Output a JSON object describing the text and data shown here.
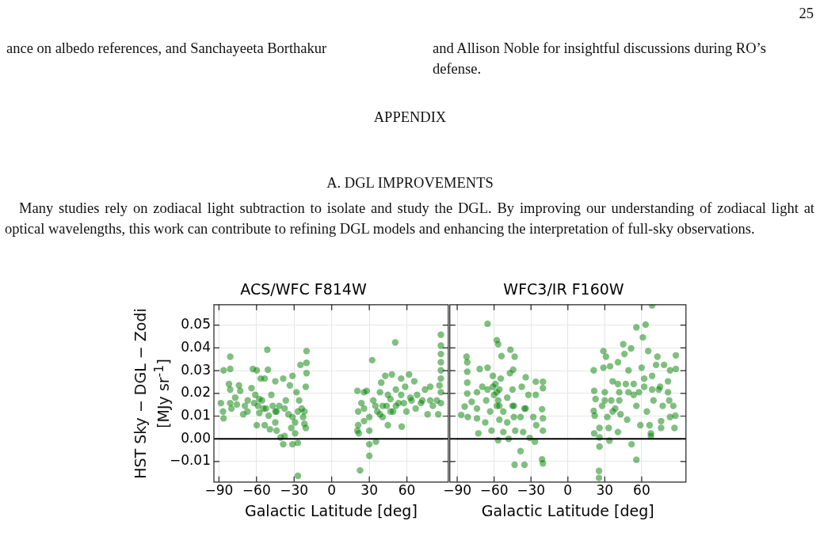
{
  "chart_data": [
    {
      "type": "scatter",
      "title": "ACS/WFC F814W",
      "xlabel": "Galactic Latitude [deg]",
      "ylabel": "HST Sky − DGL − Zodi [MJy sr$^{-1}$]",
      "annotations": [
        "25",
        "ance on albedo references, and Sanchayeeta Borthakur",
        "and Allison Noble for insightful discussions during RO’s defense.",
        "APPENDIX",
        "A. DGL IMPROVEMENTS",
        "Many studies rely on zodiacal light subtraction to isolate and study the DGL. By improving our understanding of zodiacal light at optical wavelengths, this work can contribute to refining DGL models and enhancing the interpretation of full-sky observations."
      ],
      "xlim": [
        -94,
        93
      ],
      "ylim": [
        -0.019,
        0.059
      ],
      "xticks": [
        {
          "value": -90,
          "label": "−90"
        },
        {
          "value": -60,
          "label": "−60"
        },
        {
          "value": -30,
          "label": "−30"
        },
        0,
        30,
        60
      ],
      "yticks": [
        {
          "value": -0.01,
          "label": "−0.01"
        },
        {
          "value": 0,
          "label": "0.00"
        },
        {
          "value": 0.01,
          "label": "0.01"
        },
        {
          "value": 0.02,
          "label": "0.02"
        },
        {
          "value": 0.03,
          "label": "0.03"
        },
        {
          "value": 0.04,
          "label": "0.04"
        },
        {
          "value": 0.05,
          "label": "0.05"
        }
      ],
      "grid": true,
      "marker": "circle",
      "ref_lines": [
        {
          "axis": "y",
          "value": 0,
          "color": "#000000"
        }
      ],
      "series": [
        {
          "color": "#008000",
          "x": [
            -88.4,
            -86.3,
            -86.7,
            -86.3,
            -81,
            -81,
            -82,
            -81,
            -81,
            -80,
            -77,
            -74,
            -73,
            -70.6,
            -69.3,
            -67,
            -64,
            -62.9,
            -59.8,
            -61,
            -59.8,
            -58.8,
            -57.7,
            -56.7,
            -55.6,
            -53.5,
            -51.4,
            -50.9,
            -52.4,
            -53.5,
            -49.3,
            -48.2,
            -45,
            -45,
            -45,
            -44,
            -41.9,
            -40.8,
            -38.7,
            -37.6,
            -38.7,
            -36.6,
            -34.5,
            -33.4,
            -32.3,
            -31.3,
            -31.3,
            -29.2,
            -28.1,
            -27,
            -26,
            -27,
            -24.9,
            -23.9,
            -22.8,
            -21.8,
            -20.7,
            -20.1,
            -20.1,
            -20.1,
            -20.7,
            -21.8,
            -67.2,
            -57.7,
            -54.5,
            -47.1,
            -44,
            -37.6,
            -31.3,
            -27,
            -50.3,
            -61.9,
            -75.7,
            -29.2,
            21.1,
            20.5,
            21.6,
            21.1,
            20.5,
            23.7,
            22.6,
            25.8,
            25.8,
            27.9,
            30,
            30,
            30,
            30,
            32.3,
            33.2,
            35.3,
            36.4,
            38.5,
            39.5,
            40.6,
            42.7,
            43.8,
            44.8,
            46.9,
            48,
            49,
            50.7,
            51.2,
            53.3,
            55.4,
            55.8,
            58.6,
            59.6,
            61.7,
            62.8,
            65.9,
            67,
            68.1,
            71.2,
            74.4,
            76.5,
            78.6,
            80.7,
            83.9,
            85,
            86,
            87.1,
            87.1,
            87.1,
            87.1,
            87.1,
            87.1,
            87.1,
            87.1,
            25.8,
            34.9,
            40.6,
            46.9,
            51.2,
            57.5,
            63.7,
            72.3,
            78.6,
            38.5,
            44.8,
            55.4
          ],
          "values": [
            0.0157,
            0.0301,
            0.012,
            0.009,
            0.0361,
            0.0307,
            0.0241,
            0.0217,
            0.0157,
            0.0133,
            0.0181,
            0.0235,
            0.0211,
            0.0108,
            0.0145,
            0.0169,
            0.0223,
            0.0307,
            0.0301,
            0.0193,
            0.006,
            0.0145,
            0.0114,
            0.0265,
            0.0169,
            0.0265,
            0.0392,
            0.0304,
            0.0133,
            0.006,
            0.0042,
            0.0193,
            0.0253,
            0.012,
            0.0072,
            0.0036,
            0.0145,
            0.0006,
            -0.0024,
            0.0012,
            0.0265,
            0.0169,
            0.0108,
            0.0235,
            0.0048,
            0.0277,
            -0.0024,
            0.0024,
            0.0205,
            -0.0163,
            0.0169,
            -0.0018,
            0.0325,
            0.0133,
            0.0096,
            0.0066,
            0.0048,
            0.0386,
            0.0334,
            0.0289,
            0.0229,
            0.012,
            0.012,
            0.0175,
            0.0133,
            0.0145,
            0.012,
            0.0133,
            0.0096,
            0.012,
            0.0102,
            0.0157,
            0.0151,
            0.0072,
            0.006,
            0.0036,
            0.0024,
            0.012,
            0.0211,
            0.0157,
            -0.0139,
            0.0205,
            0.0078,
            0.0211,
            0.0096,
            0.0036,
            -0.0024,
            -0.0075,
            0.0346,
            0.0169,
            -0.0012,
            0.012,
            0.0205,
            0.0247,
            0.0096,
            0.0277,
            0.0145,
            0.006,
            0.0175,
            0.0283,
            0.012,
            0.0424,
            0.0217,
            0.0157,
            0.0265,
            0.0054,
            0.0229,
            0.012,
            0.0283,
            0.0181,
            0.0253,
            0.0133,
            0.0193,
            0.0157,
            0.0217,
            0.0108,
            0.0229,
            0.0145,
            0.0169,
            0.0108,
            0.0235,
            0.0458,
            0.041,
            0.0373,
            0.0337,
            0.0301,
            0.0265,
            0.0205,
            0.0157,
            0.0133,
            0.0145,
            0.0145,
            0.012,
            0.0145,
            0.0157,
            0.0169,
            0.0169,
            0.0169,
            0.0108,
            0.0193,
            0.0193
          ]
        }
      ]
    },
    {
      "type": "scatter",
      "title": "WFC3/IR F160W",
      "xlabel": "Galactic Latitude [deg]",
      "xlim": [
        -96,
        96
      ],
      "ylim": [
        -0.019,
        0.059
      ],
      "xticks": [
        {
          "value": -90,
          "label": "−90"
        },
        {
          "value": -60,
          "label": "−60"
        },
        {
          "value": -30,
          "label": "−30"
        },
        0,
        30,
        60
      ],
      "yticks": [
        -0.01,
        0,
        0.01,
        0.02,
        0.03,
        0.04,
        0.05
      ],
      "tick_labels": "x",
      "grid": true,
      "marker": "circle",
      "ref_lines": [
        {
          "axis": "y",
          "value": 0,
          "color": "#000000"
        }
      ],
      "series": [
        {
          "color": "#008000",
          "x": [
            -86.7,
            -82.4,
            -81.8,
            -81.8,
            -81.8,
            -81.8,
            -81.4,
            -83.9,
            -78.2,
            -73.9,
            -73.9,
            -73.9,
            -72.8,
            -71.7,
            -69.6,
            -67.2,
            -66.4,
            -65.3,
            -65.3,
            -65.3,
            -63.2,
            -62.1,
            -61,
            -60,
            -57.8,
            -56.7,
            -57.8,
            -56.7,
            -55.7,
            -55.7,
            -54.6,
            -54,
            -52.5,
            -52.5,
            -49.3,
            -48.2,
            -47.1,
            -46.7,
            -45,
            -44.5,
            -43.9,
            -43.9,
            -43.3,
            -42.8,
            -43.3,
            -38.5,
            -38.5,
            -37.5,
            -36.4,
            -35.3,
            -34.3,
            -34.3,
            -32.1,
            -31,
            -28.1,
            -26.8,
            -26.1,
            -25.7,
            -26.1,
            -21,
            -20.3,
            -20.3,
            -20.3,
            -20.3,
            -20.3,
            -21,
            -57.8,
            -56.7,
            -55.7,
            -58.9,
            -61,
            -45,
            -35.3,
            -49.3,
            21,
            21,
            21.4,
            21.4,
            21.8,
            22.5,
            25.7,
            25.7,
            25.3,
            25.3,
            25.7,
            27.8,
            28.9,
            28.9,
            30,
            31,
            32.1,
            33.2,
            33.8,
            34.3,
            35.3,
            36.4,
            38.5,
            40.7,
            40.7,
            41.8,
            42.8,
            45,
            46,
            47.1,
            48.2,
            49.3,
            51.4,
            51.8,
            53.5,
            55.7,
            55.7,
            55.7,
            58.9,
            60,
            61,
            62.1,
            63.2,
            64.2,
            65.3,
            66.4,
            67.5,
            67.5,
            68.5,
            68.5,
            69.6,
            71.7,
            72.8,
            73.9,
            75.8,
            75.8,
            77.1,
            78.2,
            81.4,
            82.4,
            83.1,
            83.1,
            85.7,
            86.7,
            87.8,
            87.8,
            87.4,
            40.7,
            41.8,
            49.3,
            53.5,
            57.8,
            62.1,
            68.5,
            75,
            81.4,
            36.4,
            30
          ],
          "values": [
            0.0105,
            0.0361,
            0.0337,
            0.0295,
            0.0247,
            0.0199,
            0.0096,
            0.0142,
            0.0163,
            0.0133,
            0.0205,
            0.009,
            0.0024,
            0.0307,
            0.0229,
            0.0072,
            0.0169,
            0.0506,
            0.0313,
            0.0217,
            0.012,
            0.0036,
            0.0277,
            0.0193,
            0.0434,
            0.0416,
            0.0145,
            -0.0006,
            0.0217,
            0.0084,
            0.0265,
            0.0364,
            0.012,
            0.003,
            0.0072,
            0.0,
            0.0289,
            0.0392,
            0.0217,
            0.0304,
            0.0145,
            0.0096,
            0.0361,
            0.0036,
            -0.0114,
            -0.0054,
            0.0096,
            0.0229,
            0.003,
            -0.0114,
            0.0133,
            0.0271,
            0.0193,
            0.0004,
            0.0096,
            -0.0012,
            0.0193,
            0.006,
            0.0251,
            -0.009,
            -0.0108,
            0.0036,
            0.009,
            0.0223,
            0.0251,
            0.013,
            0.0205,
            0.0169,
            0.0145,
            0.0241,
            0.0229,
            0.0145,
            0.0133,
            0.0181,
            0.0301,
            0.0123,
            0.0211,
            0.0024,
            0.0102,
            0.0175,
            0.0006,
            -0.0034,
            -0.0141,
            -0.0172,
            0.0048,
            0.0145,
            0.0386,
            0.0313,
            0.0205,
            0.0361,
            0.0096,
            0.0048,
            -0.0008,
            0.0319,
            0.0169,
            0.0253,
            0.0133,
            0.0337,
            0.003,
            0.0205,
            0.0108,
            0.0416,
            0.0373,
            0.0241,
            0.0084,
            0.0301,
            0.0398,
            -0.0024,
            0.0193,
            0.049,
            0.0145,
            -0.0092,
            0.006,
            0.0313,
            0.0446,
            0.0229,
            0.0502,
            0.012,
            0.0386,
            0.006,
            0.0024,
            0.0012,
            0.0587,
            0.0277,
            0.0169,
            0.0325,
            0.0361,
            0.0217,
            0.0078,
            0.0048,
            0.0145,
            0.0325,
            0.0253,
            0.0169,
            0.0301,
            0.0096,
            0.0145,
            0.0048,
            0.0367,
            0.0307,
            0.0102,
            0.0241,
            0.0169,
            0.0205,
            0.0241,
            0.0205,
            0.0265,
            0.0217,
            0.0229,
            0.0205,
            0.012,
            0.0169
          ]
        }
      ]
    }
  ]
}
